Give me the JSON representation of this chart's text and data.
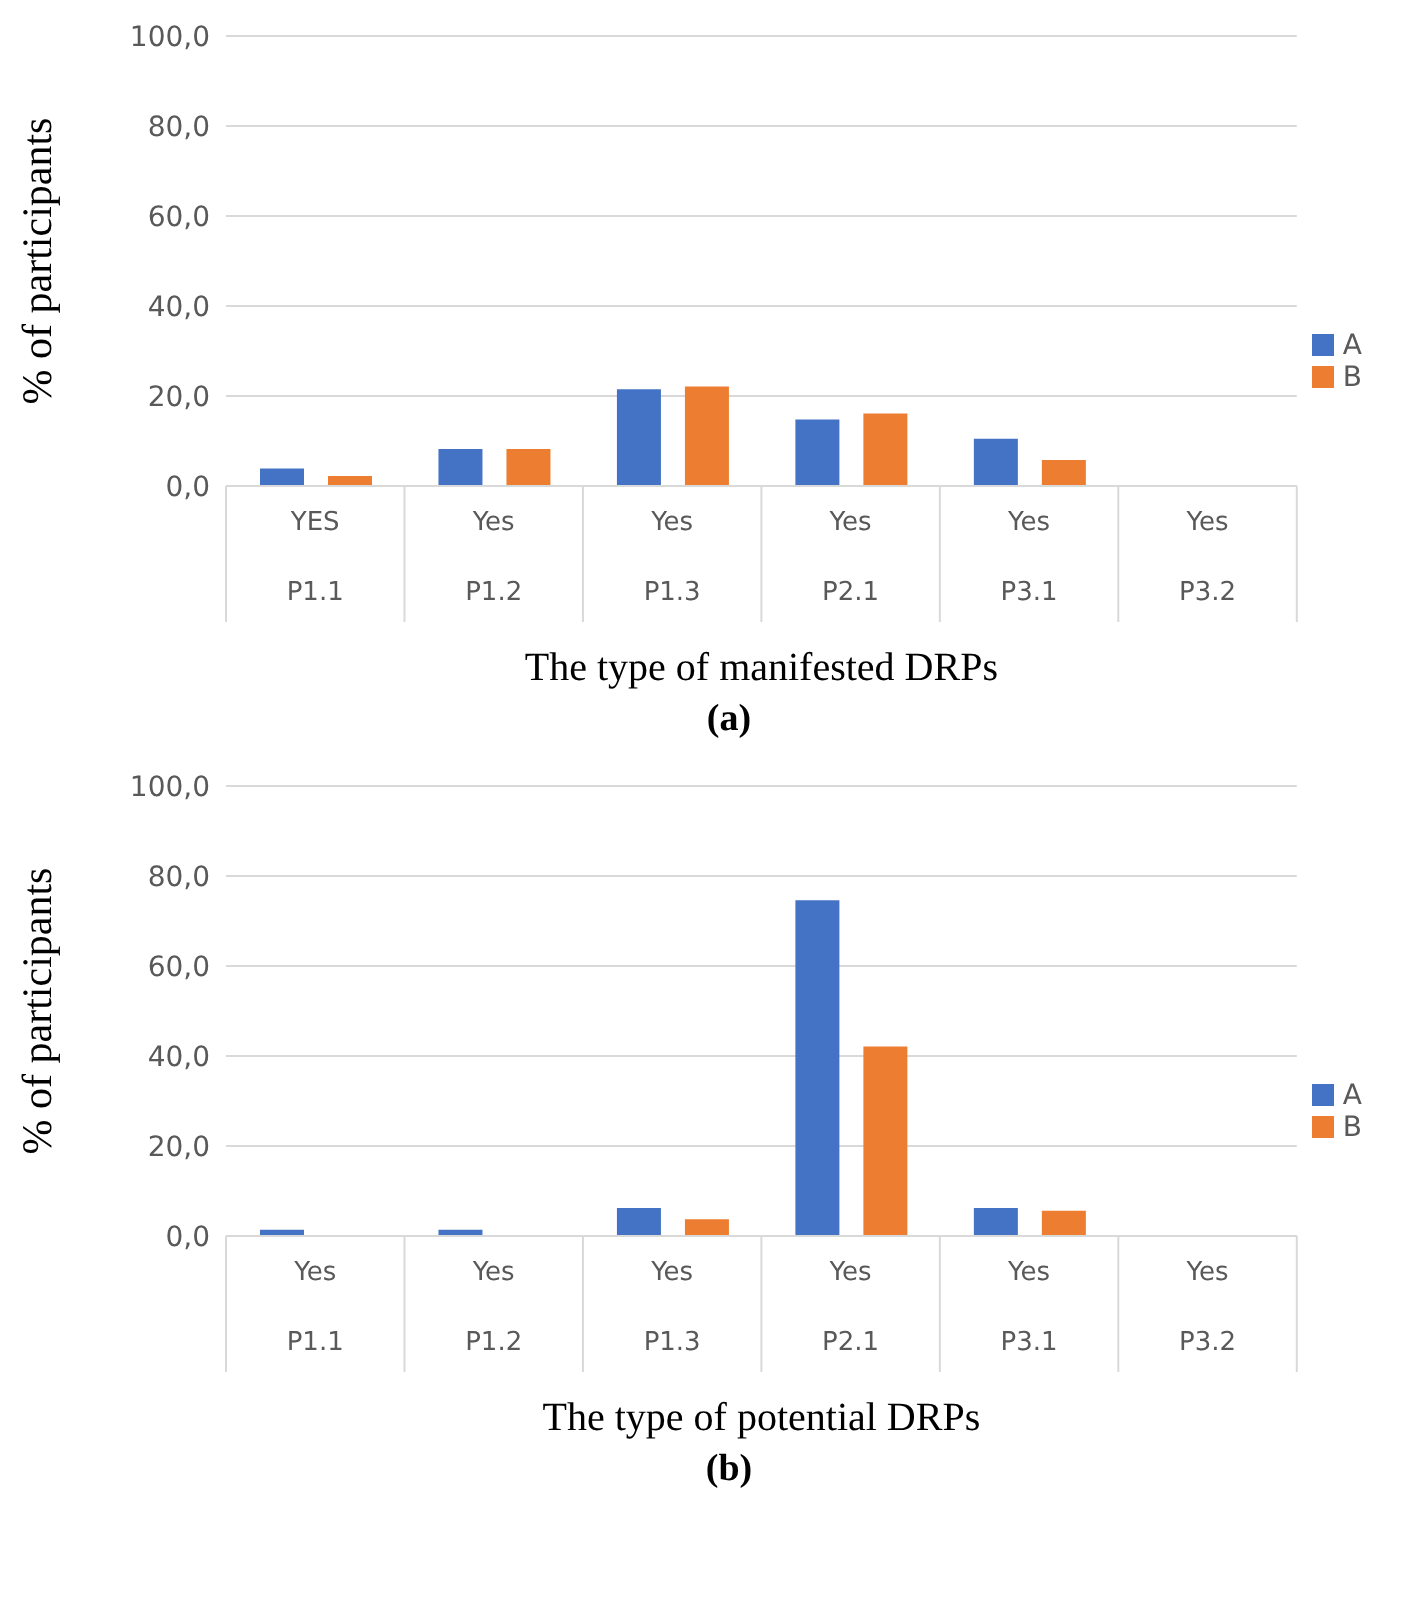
{
  "chart_data": [
    {
      "type": "bar",
      "xlabel": "The type of manifested DRPs",
      "ylabel": "% of participants",
      "annotations": [
        "(a)"
      ],
      "categories": [
        "YES\nP1.1",
        "Yes\nP1.2",
        "Yes\nP1.3",
        "Yes\nP2.1",
        "Yes\nP3.1",
        "Yes\nP3.2"
      ],
      "series": [
        {
          "name": "A",
          "color": "#4472c4",
          "values": [
            3.9,
            8.2,
            21.5,
            14.8,
            10.5,
            0
          ]
        },
        {
          "name": "B",
          "color": "#ed7d31",
          "values": [
            2.2,
            8.2,
            22.1,
            16.1,
            5.8,
            0
          ]
        }
      ],
      "ylim": [
        0,
        100
      ],
      "yticks": [
        {
          "value": 0,
          "label": "0,0"
        },
        {
          "value": 20,
          "label": "20,0"
        },
        {
          "value": 40,
          "label": "40,0"
        },
        {
          "value": 60,
          "label": "60,0"
        },
        {
          "value": 80,
          "label": "80,0"
        },
        {
          "value": 100,
          "label": "100,0"
        }
      ],
      "grid": "y",
      "legend": "right"
    },
    {
      "type": "bar",
      "xlabel": "The type of potential DRPs",
      "ylabel": "% of participants",
      "annotations": [
        "(b)"
      ],
      "categories": [
        "Yes\nP1.1",
        "Yes\nP1.2",
        "Yes\nP1.3",
        "Yes\nP2.1",
        "Yes\nP3.1",
        "Yes\nP3.2"
      ],
      "series": [
        {
          "name": "A",
          "color": "#4472c4",
          "values": [
            1.4,
            1.4,
            6.2,
            74.6,
            6.2,
            0
          ]
        },
        {
          "name": "B",
          "color": "#ed7d31",
          "values": [
            0,
            0,
            3.7,
            42.1,
            5.6,
            0
          ]
        }
      ],
      "ylim": [
        0,
        100
      ],
      "yticks": [
        {
          "value": 0,
          "label": "0,0"
        },
        {
          "value": 20,
          "label": "20,0"
        },
        {
          "value": 40,
          "label": "40,0"
        },
        {
          "value": 60,
          "label": "60,0"
        },
        {
          "value": 80,
          "label": "80,0"
        },
        {
          "value": 100,
          "label": "100,0"
        }
      ],
      "grid": "y",
      "legend": "right"
    }
  ]
}
